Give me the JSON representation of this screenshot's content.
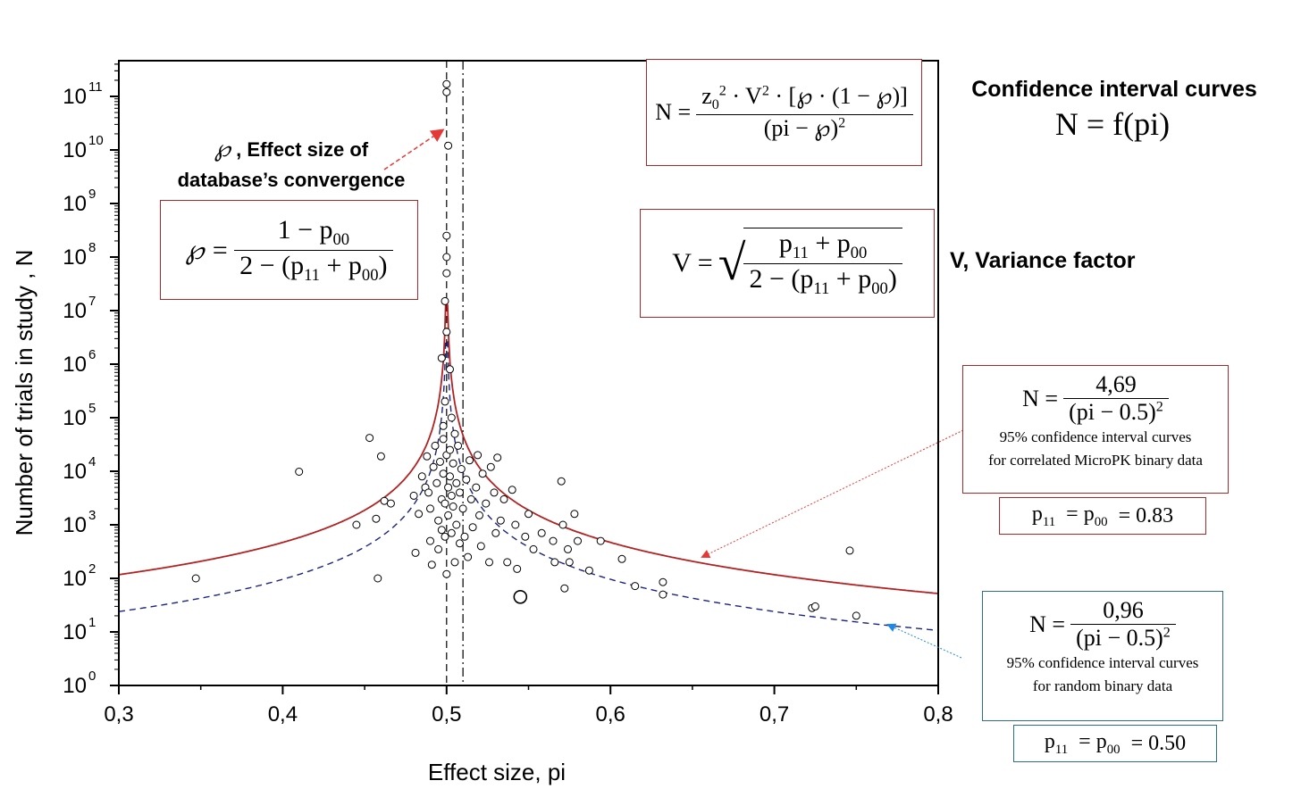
{
  "chart_data": {
    "type": "scatter",
    "xlabel": "Effect size, pi",
    "ylabel": "Number of trials in study , N",
    "xlim": [
      0.3,
      0.8
    ],
    "ylim_log10": [
      0,
      12
    ],
    "y_scale": "log",
    "x_ticks": [
      "0,3",
      "0,4",
      "0,5",
      "0,6",
      "0,7",
      "0,8"
    ],
    "y_ticks": [
      {
        "base": "10",
        "exp": "0"
      },
      {
        "base": "10",
        "exp": "1"
      },
      {
        "base": "10",
        "exp": "2"
      },
      {
        "base": "10",
        "exp": "3"
      },
      {
        "base": "10",
        "exp": "4"
      },
      {
        "base": "10",
        "exp": "5"
      },
      {
        "base": "10",
        "exp": "6"
      },
      {
        "base": "10",
        "exp": "7"
      },
      {
        "base": "10",
        "exp": "8"
      },
      {
        "base": "10",
        "exp": "9"
      },
      {
        "base": "10",
        "exp": "10"
      },
      {
        "base": "10",
        "exp": "11"
      }
    ],
    "vertical_lines": [
      {
        "x": 0.5,
        "style": "dash"
      },
      {
        "x": 0.51,
        "style": "dashdot"
      }
    ],
    "curves": [
      {
        "coefficient": 4.69,
        "center": 0.5,
        "color": "#b22222",
        "style": "solid"
      },
      {
        "coefficient": 0.96,
        "center": 0.5,
        "color": "#1a237e",
        "style": "dash"
      }
    ],
    "points": [
      {
        "x": 0.5,
        "y": 170000000000.0
      },
      {
        "x": 0.5,
        "y": 120000000000.0
      },
      {
        "x": 0.501,
        "y": 12000000000.0
      },
      {
        "x": 0.5,
        "y": 250000000.0
      },
      {
        "x": 0.5,
        "y": 100000000.0
      },
      {
        "x": 0.5,
        "y": 50000000.0
      },
      {
        "x": 0.499,
        "y": 15000000.0
      },
      {
        "x": 0.5,
        "y": 4000000.0
      },
      {
        "x": 0.497,
        "y": 1300000.0
      },
      {
        "x": 0.502,
        "y": 800000.0
      },
      {
        "x": 0.499,
        "y": 200000.0
      },
      {
        "x": 0.503,
        "y": 100000.0
      },
      {
        "x": 0.498,
        "y": 70000.0
      },
      {
        "x": 0.505,
        "y": 50000.0
      },
      {
        "x": 0.347,
        "y": 100
      },
      {
        "x": 0.41,
        "y": 9800
      },
      {
        "x": 0.445,
        "y": 1000
      },
      {
        "x": 0.453,
        "y": 42000
      },
      {
        "x": 0.457,
        "y": 1300
      },
      {
        "x": 0.458,
        "y": 100
      },
      {
        "x": 0.46,
        "y": 19000
      },
      {
        "x": 0.462,
        "y": 2800
      },
      {
        "x": 0.466,
        "y": 2500
      },
      {
        "x": 0.48,
        "y": 3500
      },
      {
        "x": 0.481,
        "y": 300
      },
      {
        "x": 0.483,
        "y": 1600
      },
      {
        "x": 0.485,
        "y": 8000
      },
      {
        "x": 0.487,
        "y": 5000
      },
      {
        "x": 0.488,
        "y": 19000
      },
      {
        "x": 0.489,
        "y": 4000
      },
      {
        "x": 0.49,
        "y": 2000
      },
      {
        "x": 0.49,
        "y": 500
      },
      {
        "x": 0.491,
        "y": 180
      },
      {
        "x": 0.492,
        "y": 12000
      },
      {
        "x": 0.493,
        "y": 30000
      },
      {
        "x": 0.494,
        "y": 6000
      },
      {
        "x": 0.495,
        "y": 1200
      },
      {
        "x": 0.495,
        "y": 350
      },
      {
        "x": 0.496,
        "y": 15000
      },
      {
        "x": 0.497,
        "y": 3000
      },
      {
        "x": 0.497,
        "y": 800
      },
      {
        "x": 0.498,
        "y": 40000
      },
      {
        "x": 0.498,
        "y": 9000
      },
      {
        "x": 0.499,
        "y": 2500
      },
      {
        "x": 0.499,
        "y": 600
      },
      {
        "x": 0.5,
        "y": 120
      },
      {
        "x": 0.5,
        "y": 20000
      },
      {
        "x": 0.501,
        "y": 5000
      },
      {
        "x": 0.501,
        "y": 1500
      },
      {
        "x": 0.502,
        "y": 25000
      },
      {
        "x": 0.502,
        "y": 8000
      },
      {
        "x": 0.503,
        "y": 3500
      },
      {
        "x": 0.503,
        "y": 700
      },
      {
        "x": 0.504,
        "y": 14000
      },
      {
        "x": 0.504,
        "y": 2200
      },
      {
        "x": 0.505,
        "y": 200
      },
      {
        "x": 0.506,
        "y": 6000
      },
      {
        "x": 0.506,
        "y": 1000
      },
      {
        "x": 0.507,
        "y": 30000
      },
      {
        "x": 0.508,
        "y": 4000
      },
      {
        "x": 0.508,
        "y": 450
      },
      {
        "x": 0.509,
        "y": 11000
      },
      {
        "x": 0.51,
        "y": 2000
      },
      {
        "x": 0.511,
        "y": 600
      },
      {
        "x": 0.512,
        "y": 7000
      },
      {
        "x": 0.513,
        "y": 250
      },
      {
        "x": 0.514,
        "y": 16000
      },
      {
        "x": 0.515,
        "y": 3000
      },
      {
        "x": 0.516,
        "y": 900
      },
      {
        "x": 0.518,
        "y": 5000
      },
      {
        "x": 0.519,
        "y": 20000
      },
      {
        "x": 0.52,
        "y": 1500
      },
      {
        "x": 0.521,
        "y": 400
      },
      {
        "x": 0.522,
        "y": 9000
      },
      {
        "x": 0.524,
        "y": 2500
      },
      {
        "x": 0.526,
        "y": 200
      },
      {
        "x": 0.527,
        "y": 12000
      },
      {
        "x": 0.529,
        "y": 4000
      },
      {
        "x": 0.53,
        "y": 700
      },
      {
        "x": 0.531,
        "y": 18000
      },
      {
        "x": 0.533,
        "y": 1200
      },
      {
        "x": 0.535,
        "y": 3000
      },
      {
        "x": 0.537,
        "y": 200
      },
      {
        "x": 0.54,
        "y": 4500
      },
      {
        "x": 0.542,
        "y": 1000
      },
      {
        "x": 0.543,
        "y": 150
      },
      {
        "x": 0.545,
        "y": 45
      },
      {
        "x": 0.548,
        "y": 600
      },
      {
        "x": 0.55,
        "y": 1600
      },
      {
        "x": 0.553,
        "y": 350
      },
      {
        "x": 0.558,
        "y": 700
      },
      {
        "x": 0.565,
        "y": 500
      },
      {
        "x": 0.566,
        "y": 200
      },
      {
        "x": 0.57,
        "y": 6500
      },
      {
        "x": 0.571,
        "y": 1000
      },
      {
        "x": 0.572,
        "y": 65
      },
      {
        "x": 0.574,
        "y": 350
      },
      {
        "x": 0.575,
        "y": 200
      },
      {
        "x": 0.578,
        "y": 1600
      },
      {
        "x": 0.58,
        "y": 500
      },
      {
        "x": 0.587,
        "y": 140
      },
      {
        "x": 0.594,
        "y": 500
      },
      {
        "x": 0.607,
        "y": 230
      },
      {
        "x": 0.615,
        "y": 72
      },
      {
        "x": 0.632,
        "y": 85
      },
      {
        "x": 0.632,
        "y": 50
      },
      {
        "x": 0.723,
        "y": 28
      },
      {
        "x": 0.725,
        "y": 30
      },
      {
        "x": 0.746,
        "y": 330
      },
      {
        "x": 0.75,
        "y": 20
      }
    ]
  },
  "annotations": {
    "rho_symbol": "℘",
    "effect_size_label_1": ", Effect size of",
    "effect_size_label_2": "database’s convergence",
    "ci_title": "Confidence interval curves",
    "ci_eq_lhs": "N = f",
    "ci_eq_arg": "(pi)",
    "variance_label": "V, Variance factor",
    "box_red_caption_1": "95% confidence interval  curves",
    "box_red_caption_2": "for correlated MicroPK binary data",
    "box_red_num": "4,69",
    "box_red_p": "= 0.83",
    "box_blue_caption_1": "95% confidence interval curves",
    "box_blue_caption_2": "for random binary data",
    "box_blue_num": "0,96",
    "box_blue_p": "= 0.50",
    "den_text": "(pi − 0.5)",
    "den_exp": "2",
    "n_eq": "N =",
    "v_eq": "V =",
    "rho_eq": "℘ ="
  },
  "colors": {
    "red_curve": "#b22222",
    "blue_curve": "#1a237e",
    "red_box": "#a52a2a",
    "blue_box": "#2e6e8a",
    "arrow_red": "#e53935",
    "arrow_blue": "#1e88e5"
  }
}
